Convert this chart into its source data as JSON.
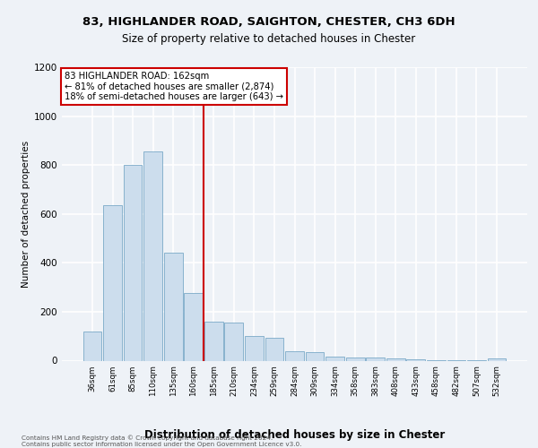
{
  "title1": "83, HIGHLANDER ROAD, SAIGHTON, CHESTER, CH3 6DH",
  "title2": "Size of property relative to detached houses in Chester",
  "xlabel": "Distribution of detached houses by size in Chester",
  "ylabel": "Number of detached properties",
  "categories": [
    "36sqm",
    "61sqm",
    "85sqm",
    "110sqm",
    "135sqm",
    "160sqm",
    "185sqm",
    "210sqm",
    "234sqm",
    "259sqm",
    "284sqm",
    "309sqm",
    "334sqm",
    "358sqm",
    "383sqm",
    "408sqm",
    "433sqm",
    "458sqm",
    "482sqm",
    "507sqm",
    "532sqm"
  ],
  "values": [
    120,
    635,
    800,
    855,
    440,
    275,
    160,
    155,
    100,
    95,
    40,
    35,
    15,
    14,
    12,
    8,
    5,
    3,
    2,
    1,
    10
  ],
  "bar_color": "#ccdded",
  "bar_edge_color": "#7baac8",
  "vline_index": 5,
  "vline_color": "#cc0000",
  "annotation_text": "83 HIGHLANDER ROAD: 162sqm\n← 81% of detached houses are smaller (2,874)\n18% of semi-detached houses are larger (643) →",
  "annotation_box_color": "#ffffff",
  "annotation_box_edge": "#cc0000",
  "ylim": [
    0,
    1200
  ],
  "yticks": [
    0,
    200,
    400,
    600,
    800,
    1000,
    1200
  ],
  "background_color": "#eef2f7",
  "grid_color": "#ffffff",
  "footer": "Contains HM Land Registry data © Crown copyright and database right 2024.\nContains public sector information licensed under the Open Government Licence v3.0."
}
